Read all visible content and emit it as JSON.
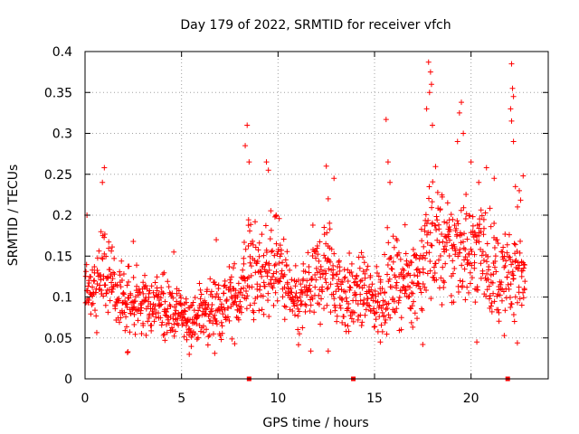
{
  "chart_data": {
    "type": "scatter",
    "title": "Day 179 of 2022, SRMTID for receiver vfch",
    "xlabel": "GPS time / hours",
    "ylabel": "SRMTID / TECUs",
    "xlim": [
      0,
      24
    ],
    "ylim": [
      0,
      0.4
    ],
    "grid": true,
    "x_ticks": [
      0,
      5,
      10,
      15,
      20
    ],
    "x_tick_labels": [
      "0",
      "5",
      "10",
      "15",
      "20"
    ],
    "y_ticks": [
      0,
      0.05,
      0.1,
      0.15,
      0.2,
      0.25,
      0.3,
      0.35,
      0.4
    ],
    "y_tick_labels": [
      "0",
      "0.05",
      "0.1",
      "0.15",
      "0.2",
      "0.25",
      "0.3",
      "0.35",
      "0.4"
    ],
    "marker": "plus",
    "color": "#ff0000",
    "baseline_markers_x": [
      8.5,
      13.9,
      21.9
    ],
    "series": [
      {
        "name": "SRMTID",
        "envelope": {
          "x": [
            0,
            0.5,
            1,
            1.5,
            2,
            3,
            4,
            5,
            5.5,
            6,
            7,
            8,
            8.5,
            9,
            9.5,
            10,
            10.5,
            11,
            11.5,
            12,
            12.5,
            13,
            13.5,
            14,
            14.5,
            15,
            15.5,
            16,
            16.5,
            17,
            17.5,
            18,
            18.5,
            19,
            19.5,
            20,
            20.5,
            21,
            21.5,
            22,
            22.5,
            22.8
          ],
          "mid": [
            0.11,
            0.1,
            0.14,
            0.11,
            0.09,
            0.09,
            0.09,
            0.075,
            0.07,
            0.08,
            0.09,
            0.1,
            0.14,
            0.12,
            0.14,
            0.14,
            0.11,
            0.08,
            0.11,
            0.12,
            0.14,
            0.12,
            0.1,
            0.1,
            0.11,
            0.09,
            0.11,
            0.12,
            0.12,
            0.12,
            0.14,
            0.18,
            0.16,
            0.15,
            0.17,
            0.15,
            0.16,
            0.14,
            0.12,
            0.12,
            0.14,
            0.13
          ],
          "spread": [
            0.03,
            0.03,
            0.04,
            0.03,
            0.03,
            0.03,
            0.03,
            0.02,
            0.02,
            0.025,
            0.03,
            0.03,
            0.05,
            0.04,
            0.04,
            0.04,
            0.035,
            0.03,
            0.035,
            0.04,
            0.045,
            0.04,
            0.035,
            0.03,
            0.03,
            0.03,
            0.035,
            0.035,
            0.035,
            0.035,
            0.045,
            0.06,
            0.05,
            0.05,
            0.05,
            0.05,
            0.045,
            0.045,
            0.04,
            0.04,
            0.05,
            0.04
          ]
        },
        "peaks": [
          [
            1.0,
            0.258
          ],
          [
            0.9,
            0.24
          ],
          [
            0.1,
            0.2
          ],
          [
            2.5,
            0.168
          ],
          [
            4.6,
            0.155
          ],
          [
            6.8,
            0.17
          ],
          [
            8.4,
            0.31
          ],
          [
            8.3,
            0.285
          ],
          [
            8.5,
            0.265
          ],
          [
            9.4,
            0.265
          ],
          [
            9.5,
            0.255
          ],
          [
            9.9,
            0.2
          ],
          [
            12.5,
            0.26
          ],
          [
            12.9,
            0.245
          ],
          [
            12.6,
            0.22
          ],
          [
            15.6,
            0.317
          ],
          [
            15.7,
            0.265
          ],
          [
            15.8,
            0.24
          ],
          [
            17.8,
            0.387
          ],
          [
            17.9,
            0.375
          ],
          [
            17.95,
            0.36
          ],
          [
            17.85,
            0.35
          ],
          [
            18.0,
            0.31
          ],
          [
            17.7,
            0.33
          ],
          [
            19.5,
            0.338
          ],
          [
            19.4,
            0.325
          ],
          [
            19.6,
            0.3
          ],
          [
            19.3,
            0.29
          ],
          [
            20.0,
            0.265
          ],
          [
            20.8,
            0.258
          ],
          [
            20.4,
            0.24
          ],
          [
            21.2,
            0.245
          ],
          [
            22.1,
            0.385
          ],
          [
            22.15,
            0.355
          ],
          [
            22.2,
            0.345
          ],
          [
            22.05,
            0.33
          ],
          [
            22.1,
            0.315
          ],
          [
            22.2,
            0.29
          ],
          [
            22.7,
            0.248
          ],
          [
            22.3,
            0.235
          ],
          [
            22.5,
            0.23
          ],
          [
            17.5,
            0.042
          ],
          [
            11.7,
            0.034
          ],
          [
            12.6,
            0.034
          ],
          [
            5.4,
            0.03
          ],
          [
            2.2,
            0.032
          ],
          [
            15.3,
            0.045
          ],
          [
            20.3,
            0.045
          ]
        ]
      }
    ]
  }
}
